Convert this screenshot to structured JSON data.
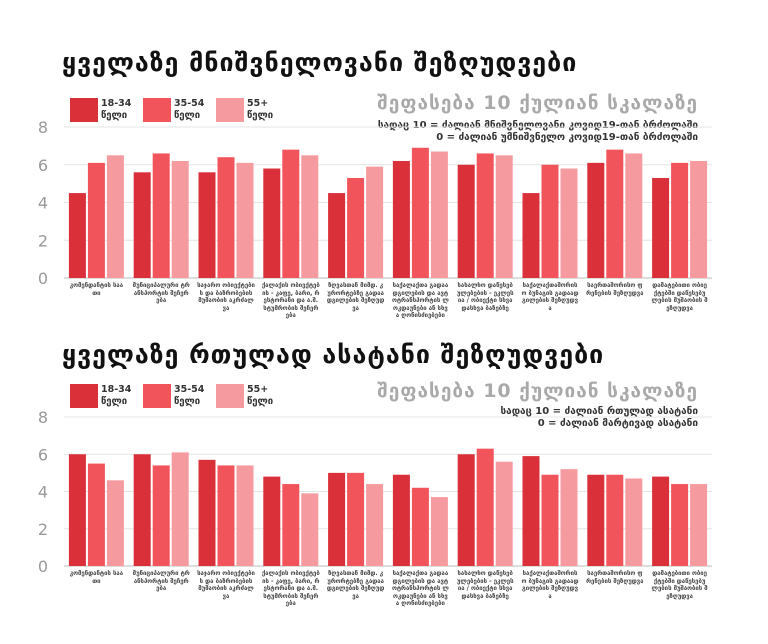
{
  "chart_data": [
    {
      "type": "bar",
      "title": "ყველაზე მნიშვნელოვანი შეზღუდვები",
      "scale_title": "შეფასება 10 ქულიან სკალაზე",
      "scale_note_1": "სადაც 10 = ძალიან მნიშვნელოვანი კოვიდ19-თან ბრძოლაში",
      "scale_note_2": "0 = ძალიან უმნიშვნელო კოვიდ19-თან ბრძოლაში",
      "ylim": [
        0,
        8
      ],
      "yticks": [
        "0",
        "2",
        "4",
        "6",
        "8"
      ],
      "categories": [
        "კომენდანტის საათი",
        "მუნიციპალური ტრანსპორტის შეჩერება",
        "საჯარო ობიექტების და ბაზრობების მუშაობის აკრძალვა",
        "ქალაქის ობიექტების - კაფე, ბარი, რესტორანი და ა.შ. სტუმრობის შეჩერება",
        "ზღვასთან მიმდ. კურორტებზე გადაადგილების შეზღუდვა",
        "საქალაქთა გადაადგილების და ავტოტრანსპორტის ლოკდაუნები ან სხვა ღონისძიებები",
        "სახალხო დაწესებულებების - ეკლესია / ობიექტი სხვადასხვა ბაზებზე",
        "საქალაქთაშორისო ბუნაგის გადაადგილების შეზღუდვა",
        "საერთაშორისო ფრენების შეზღუდვა",
        "დამატებითი ობიექტებში დაწესებულების მუშაობის შეზღუდვა"
      ],
      "series": [
        {
          "name": "18-34 წელი",
          "color": "#d9303a",
          "values": [
            4.5,
            5.6,
            5.6,
            5.8,
            4.5,
            6.2,
            6.0,
            4.5,
            6.1,
            5.3
          ]
        },
        {
          "name": "35-54 წელი",
          "color": "#f2545b",
          "values": [
            6.1,
            6.6,
            6.4,
            6.8,
            5.3,
            6.9,
            6.6,
            6.0,
            6.8,
            6.1
          ]
        },
        {
          "name": "55+ წელი",
          "color": "#f59a9e",
          "values": [
            6.5,
            6.2,
            6.1,
            6.5,
            5.9,
            6.7,
            6.5,
            5.8,
            6.6,
            6.2
          ]
        }
      ]
    },
    {
      "type": "bar",
      "title": "ყველაზე რთულად ასატანი შეზღუდვები",
      "scale_title": "შეფასება 10 ქულიან სკალაზე",
      "scale_note_1": "სადაც 10 = ძალიან რთულად ასატანი",
      "scale_note_2": "0 = ძალიან მარტივად ასატანი",
      "ylim": [
        0,
        8
      ],
      "yticks": [
        "0",
        "2",
        "4",
        "6",
        "8"
      ],
      "categories": [
        "კომენდანტის საათი",
        "მუნიციპალური ტრანსპორტის შეჩერება",
        "საჯარო ობიექტების და ბაზრობების მუშაობის აკრძალვა",
        "ქალაქის ობიექტების - კაფე, ბარი, რესტორანი და ა.შ. სტუმრობის შეჩერება",
        "ზღვასთან მიმდ. კურორტებზე გადაადგილების შეზღუდვა",
        "საქალაქთა გადაადგილების და ავტოტრანსპორტის ლოკდაუნები ან სხვა ღონისძიებები",
        "სახალხო დაწესებულებების - ეკლესია / ობიექტი სხვადასხვა ბაზებზე",
        "საქალაქთაშორისო ბუნაგის გადაადგილების შეზღუდვა",
        "საერთაშორისო ფრენების შეზღუდვა",
        "დამატებითი ობიექტებში დაწესებულების მუშაობის შეზღუდვა"
      ],
      "series": [
        {
          "name": "18-34 წელი",
          "color": "#d9303a",
          "values": [
            6.0,
            6.0,
            5.7,
            4.8,
            5.0,
            4.9,
            6.0,
            5.9,
            4.9,
            4.8
          ]
        },
        {
          "name": "35-54 წელი",
          "color": "#f2545b",
          "values": [
            5.5,
            5.4,
            5.4,
            4.4,
            5.0,
            4.2,
            6.3,
            4.9,
            4.9,
            4.4
          ]
        },
        {
          "name": "55+ წელი",
          "color": "#f59a9e",
          "values": [
            4.6,
            6.1,
            5.4,
            3.9,
            4.4,
            3.7,
            5.6,
            5.2,
            4.7,
            4.4
          ]
        }
      ]
    }
  ]
}
